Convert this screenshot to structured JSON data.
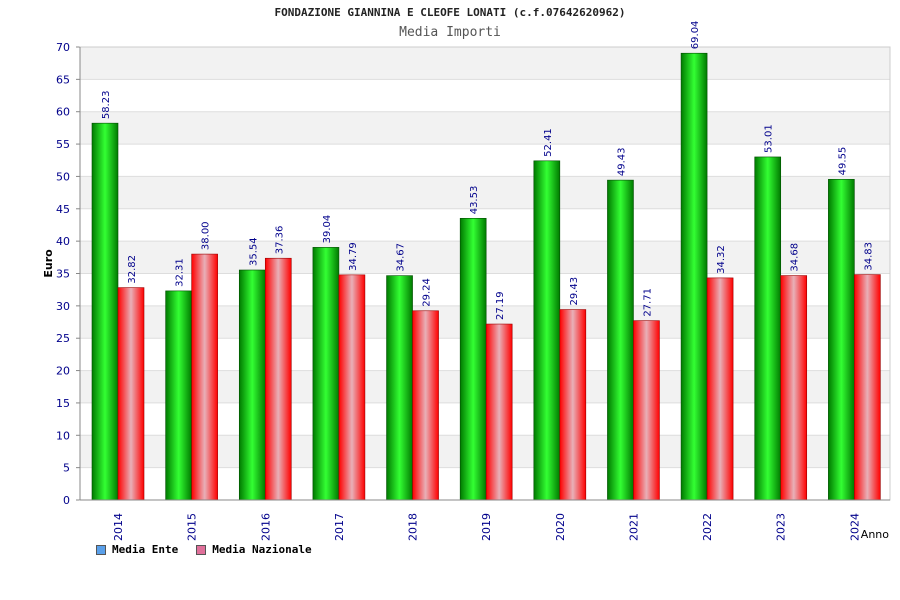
{
  "title": "FONDAZIONE GIANNINA E CLEOFE LONATI (c.f.07642620962)",
  "subtitle": "Media Importi",
  "colors": {
    "ente_dark": "#007a00",
    "ente_light": "#33ff33",
    "nazionale_dark": "#ff0000",
    "nazionale_light": "#e8b0b8",
    "legend_ente": "#5aa0ea",
    "legend_nazionale": "#e0709a",
    "axis_text": "#00008b"
  },
  "legend": [
    {
      "label": "Media Ente"
    },
    {
      "label": "Media Nazionale"
    }
  ],
  "chart_data": {
    "type": "bar",
    "title": "FONDAZIONE GIANNINA E CLEOFE LONATI (c.f.07642620962)",
    "subtitle": "Media Importi",
    "xlabel": "Anno",
    "ylabel": "Euro",
    "ylim": [
      0,
      70
    ],
    "yticks": [
      0,
      5,
      10,
      15,
      20,
      25,
      30,
      35,
      40,
      45,
      50,
      55,
      60,
      65,
      70
    ],
    "grid": true,
    "legend_position": "bottom-left",
    "categories": [
      "2014",
      "2015",
      "2016",
      "2017",
      "2018",
      "2019",
      "2020",
      "2021",
      "2022",
      "2023",
      "2024"
    ],
    "series": [
      {
        "name": "Media Ente",
        "values": [
          58.23,
          32.31,
          35.54,
          39.04,
          34.67,
          43.53,
          52.41,
          49.43,
          69.04,
          53.01,
          49.55
        ],
        "labels": [
          "58.23",
          "32.31",
          "35.54",
          "39.04",
          "34.67",
          "43.53",
          "52.41",
          "49.43",
          "69.04",
          "53.01",
          "49.55"
        ]
      },
      {
        "name": "Media Nazionale",
        "values": [
          32.82,
          38.0,
          37.36,
          34.79,
          29.24,
          27.19,
          29.43,
          27.71,
          34.32,
          34.68,
          34.83
        ],
        "labels": [
          "32.82",
          "38.00",
          "37.36",
          "34.79",
          "29.24",
          "27.19",
          "29.43",
          "27.71",
          "34.32",
          "34.68",
          "34.83"
        ]
      }
    ]
  }
}
